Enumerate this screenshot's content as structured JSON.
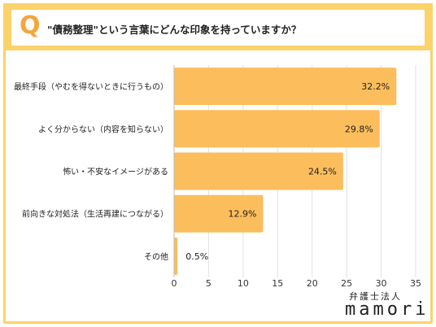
{
  "header": {
    "q_mark": "Q",
    "question": "\"債務整理\"という言葉にどんな印象を持っていますか？"
  },
  "brand": {
    "sub": "弁護士法人",
    "name": "mamori"
  },
  "colors": {
    "bar": "#fcbd5c",
    "frame": "#fcd26a",
    "accent": "#f4a63b",
    "grid": "#e2e2e2"
  },
  "chart_data": {
    "type": "bar",
    "orientation": "horizontal",
    "categories": [
      "最終手段（やむを得ないときに行うもの）",
      "よく分からない（内容を知らない）",
      "怖い・不安なイメージがある",
      "前向きな対処法（生活再建につながる）",
      "その他"
    ],
    "values": [
      32.2,
      29.8,
      24.5,
      12.9,
      0.5
    ],
    "value_labels": [
      "32.2%",
      "29.8%",
      "24.5%",
      "12.9%",
      "0.5%"
    ],
    "xlim": [
      0,
      35
    ],
    "xticks": [
      0,
      5,
      10,
      15,
      20,
      25,
      30,
      35
    ],
    "grid": true
  }
}
